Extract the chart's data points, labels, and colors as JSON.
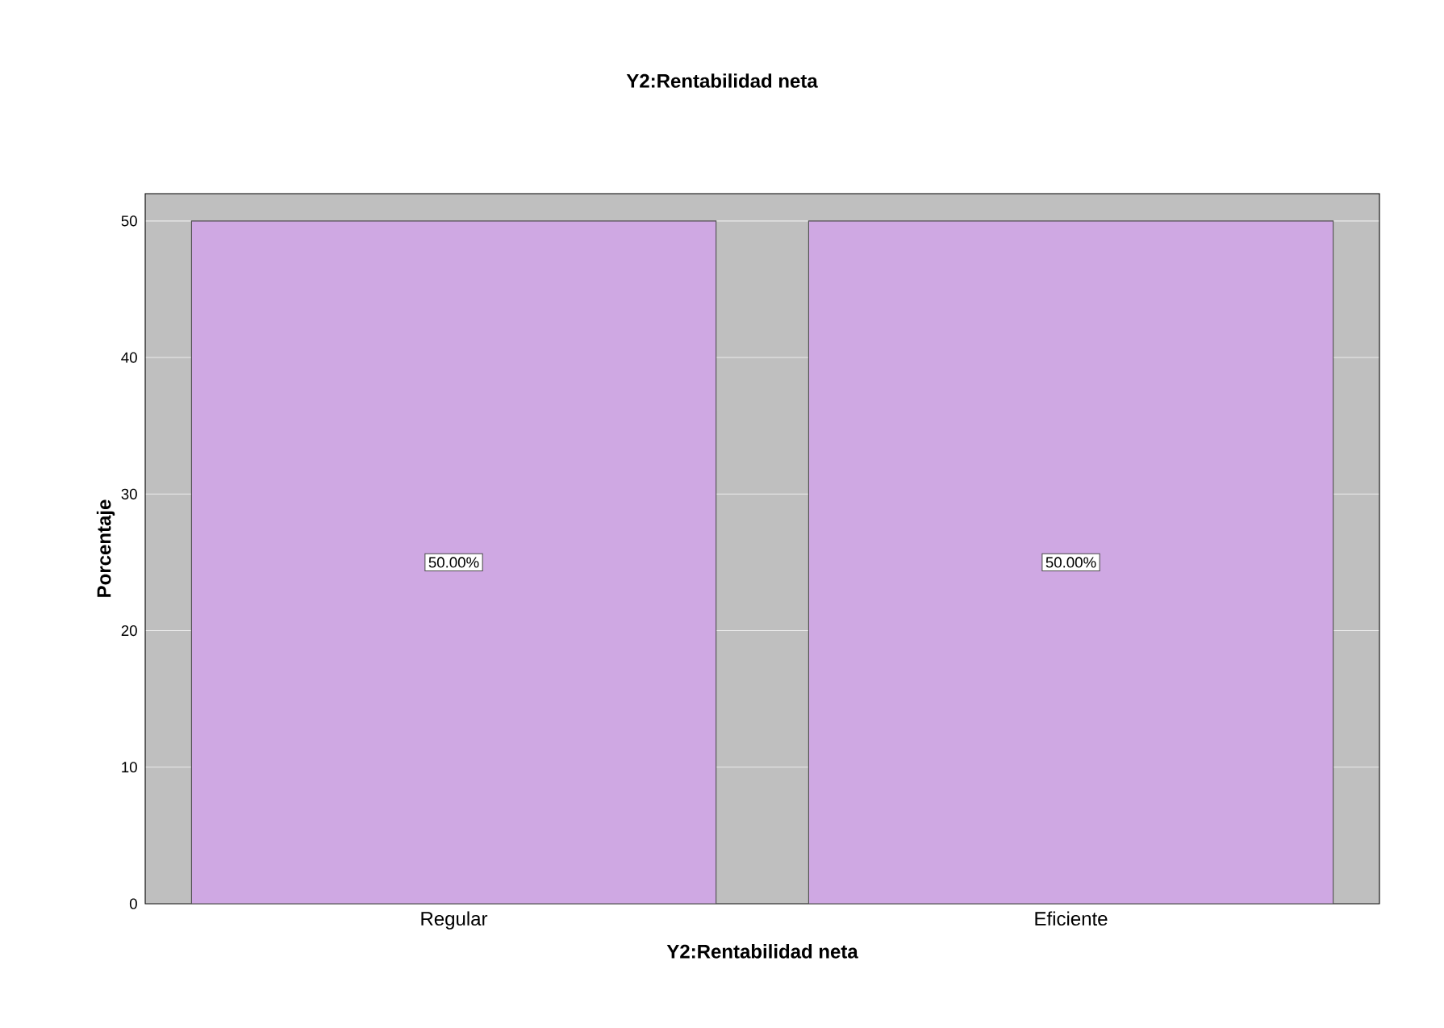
{
  "chart_data": {
    "type": "bar",
    "title": "Y2:Rentabilidad neta",
    "xlabel": "Y2:Rentabilidad neta",
    "ylabel": "Porcentaje",
    "categories": [
      "Regular",
      "Eficiente"
    ],
    "values": [
      50,
      50
    ],
    "value_labels": [
      "50.00%",
      "50.00%"
    ],
    "color": "#cfa8e3",
    "ylim": [
      0,
      52
    ],
    "yticks": [
      0,
      10,
      20,
      30,
      40,
      50
    ],
    "grid": "y"
  }
}
